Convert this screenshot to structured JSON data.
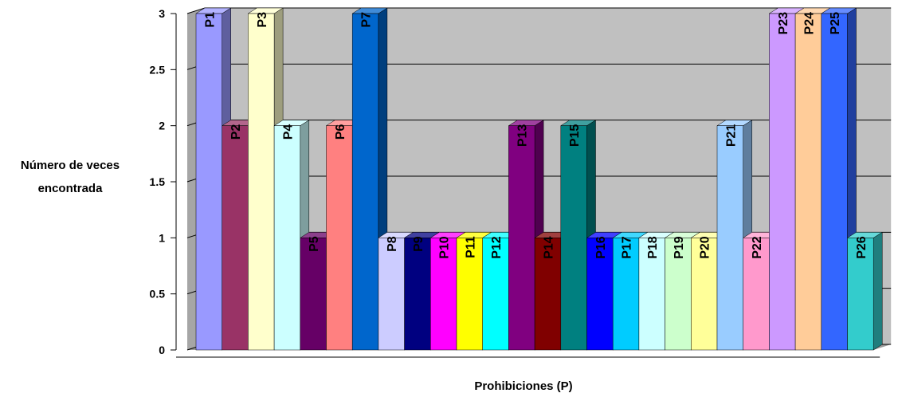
{
  "chart_data": {
    "type": "bar",
    "style": "3d",
    "categories": [
      "P1",
      "P2",
      "P3",
      "P4",
      "P5",
      "P6",
      "P7",
      "P8",
      "P9",
      "P10",
      "P11",
      "P12",
      "P13",
      "P14",
      "P15",
      "P16",
      "P17",
      "P18",
      "P19",
      "P20",
      "P21",
      "P22",
      "P23",
      "P24",
      "P25",
      "P26"
    ],
    "values": [
      3,
      2,
      3,
      2,
      1,
      2,
      3,
      1,
      1,
      1,
      1,
      1,
      2,
      1,
      2,
      1,
      1,
      1,
      1,
      1,
      2,
      1,
      3,
      3,
      3,
      1
    ],
    "colors": [
      "#9999ff",
      "#993366",
      "#ffffcc",
      "#ccffff",
      "#660066",
      "#ff8080",
      "#0066cc",
      "#ccccff",
      "#000080",
      "#ff00ff",
      "#ffff00",
      "#00ffff",
      "#800080",
      "#800000",
      "#008080",
      "#0000ff",
      "#00ccff",
      "#ccffff",
      "#ccffcc",
      "#ffff99",
      "#99ccff",
      "#ff99cc",
      "#cc99ff",
      "#ffcc99",
      "#3366ff",
      "#33cccc"
    ],
    "ytick_labels": [
      "0",
      "0.5",
      "1",
      "1.5",
      "2",
      "2.5",
      "3"
    ],
    "ylim": [
      0,
      3
    ],
    "xlabel": "Prohibiciones (P)",
    "ylabel_lines": [
      "Número de veces",
      "encontrada"
    ],
    "title": "",
    "grid": true,
    "legend": "none"
  }
}
